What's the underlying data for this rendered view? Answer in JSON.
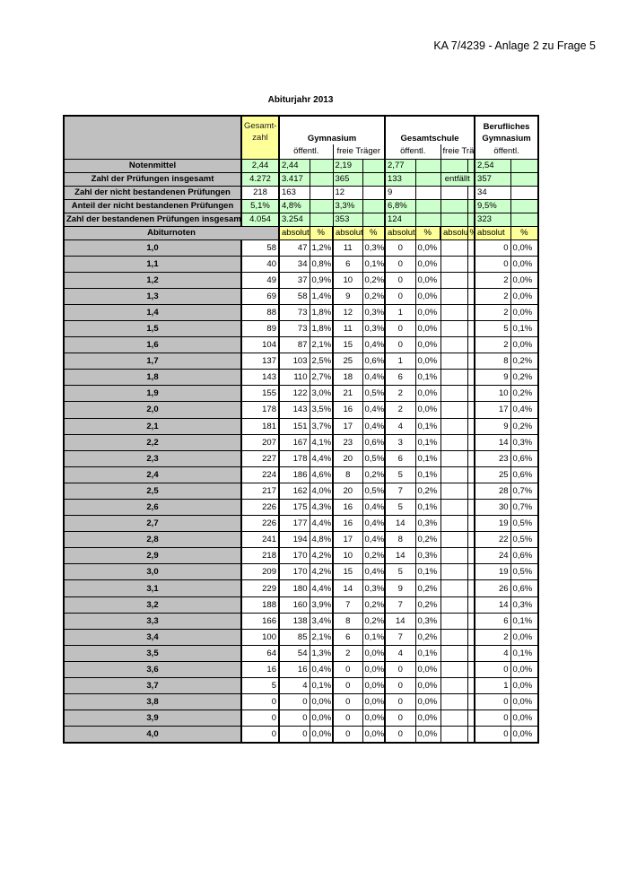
{
  "document_ref": "KA 7/4239 - Anlage 2 zu Frage 5",
  "title": "Abiturjahr 2013",
  "colors": {
    "label_gray": "#c0c0c0",
    "green": "#ccffcc",
    "yellow": "#ffff99"
  },
  "header": {
    "gesamtzahl": "Gesamt-zahl",
    "gymnasium": "Gymnasium",
    "gesamtschule": "Gesamtschule",
    "berufliches_gymnasium": "Berufliches Gymnasium",
    "oeffentl": "öffentl.",
    "freie_traeger": "freie Träger",
    "abiturnoten": "Abiturnoten",
    "absolut": "absolut",
    "percent": "%"
  },
  "summary_rows": [
    {
      "label": "Notenmittel",
      "gesamt": "2,44",
      "gym_oeff": "2,44",
      "gym_frei": "2,19",
      "gs_oeff": "2,77",
      "gs_frei": "",
      "bg_oeff": "2,54"
    },
    {
      "label": "Zahl der Prüfungen insgesamt",
      "gesamt": "4.272",
      "gym_oeff": "3.417",
      "gym_frei": "365",
      "gs_oeff": "133",
      "gs_frei": "entfällt",
      "bg_oeff": "357"
    },
    {
      "label": "Zahl der nicht bestandenen Prüfungen",
      "gesamt": "218",
      "gym_oeff": "163",
      "gym_frei": "12",
      "gs_oeff": "9",
      "gs_frei": "",
      "bg_oeff": "34"
    },
    {
      "label": "Anteil der nicht bestandenen Prüfungen",
      "gesamt": "5,1%",
      "gym_oeff": "4,8%",
      "gym_frei": "3,3%",
      "gs_oeff": "6,8%",
      "gs_frei": "",
      "bg_oeff": "9,5%"
    },
    {
      "label": "Zahl der bestandenen Prüfungen insgesamt",
      "gesamt": "4.054",
      "gym_oeff": "3.254",
      "gym_frei": "353",
      "gs_oeff": "124",
      "gs_frei": "",
      "bg_oeff": "323"
    }
  ],
  "grade_columns": [
    "note",
    "gesamt",
    "gym_oeff_abs",
    "gym_oeff_pct",
    "gym_frei_abs",
    "gym_frei_pct",
    "gs_oeff_abs",
    "gs_oeff_pct",
    "gs_frei_abs",
    "gs_frei_pct",
    "bg_oeff_abs",
    "bg_oeff_pct"
  ],
  "grade_rows": [
    [
      "1,0",
      "58",
      "47",
      "1,2%",
      "11",
      "0,3%",
      "0",
      "0,0%",
      "",
      "",
      "0",
      "0,0%"
    ],
    [
      "1,1",
      "40",
      "34",
      "0,8%",
      "6",
      "0,1%",
      "0",
      "0,0%",
      "",
      "",
      "0",
      "0,0%"
    ],
    [
      "1,2",
      "49",
      "37",
      "0,9%",
      "10",
      "0,2%",
      "0",
      "0,0%",
      "",
      "",
      "2",
      "0,0%"
    ],
    [
      "1,3",
      "69",
      "58",
      "1,4%",
      "9",
      "0,2%",
      "0",
      "0,0%",
      "",
      "",
      "2",
      "0,0%"
    ],
    [
      "1,4",
      "88",
      "73",
      "1,8%",
      "12",
      "0,3%",
      "1",
      "0,0%",
      "",
      "",
      "2",
      "0,0%"
    ],
    [
      "1,5",
      "89",
      "73",
      "1,8%",
      "11",
      "0,3%",
      "0",
      "0,0%",
      "",
      "",
      "5",
      "0,1%"
    ],
    [
      "1,6",
      "104",
      "87",
      "2,1%",
      "15",
      "0,4%",
      "0",
      "0,0%",
      "",
      "",
      "2",
      "0,0%"
    ],
    [
      "1,7",
      "137",
      "103",
      "2,5%",
      "25",
      "0,6%",
      "1",
      "0,0%",
      "",
      "",
      "8",
      "0,2%"
    ],
    [
      "1,8",
      "143",
      "110",
      "2,7%",
      "18",
      "0,4%",
      "6",
      "0,1%",
      "",
      "",
      "9",
      "0,2%"
    ],
    [
      "1,9",
      "155",
      "122",
      "3,0%",
      "21",
      "0,5%",
      "2",
      "0,0%",
      "",
      "",
      "10",
      "0,2%"
    ],
    [
      "2,0",
      "178",
      "143",
      "3,5%",
      "16",
      "0,4%",
      "2",
      "0,0%",
      "",
      "",
      "17",
      "0,4%"
    ],
    [
      "2,1",
      "181",
      "151",
      "3,7%",
      "17",
      "0,4%",
      "4",
      "0,1%",
      "",
      "",
      "9",
      "0,2%"
    ],
    [
      "2,2",
      "207",
      "167",
      "4,1%",
      "23",
      "0,6%",
      "3",
      "0,1%",
      "",
      "",
      "14",
      "0,3%"
    ],
    [
      "2,3",
      "227",
      "178",
      "4,4%",
      "20",
      "0,5%",
      "6",
      "0,1%",
      "",
      "",
      "23",
      "0,6%"
    ],
    [
      "2,4",
      "224",
      "186",
      "4,6%",
      "8",
      "0,2%",
      "5",
      "0,1%",
      "",
      "",
      "25",
      "0,6%"
    ],
    [
      "2,5",
      "217",
      "162",
      "4,0%",
      "20",
      "0,5%",
      "7",
      "0,2%",
      "",
      "",
      "28",
      "0,7%"
    ],
    [
      "2,6",
      "226",
      "175",
      "4,3%",
      "16",
      "0,4%",
      "5",
      "0,1%",
      "",
      "",
      "30",
      "0,7%"
    ],
    [
      "2,7",
      "226",
      "177",
      "4,4%",
      "16",
      "0,4%",
      "14",
      "0,3%",
      "",
      "",
      "19",
      "0,5%"
    ],
    [
      "2,8",
      "241",
      "194",
      "4,8%",
      "17",
      "0,4%",
      "8",
      "0,2%",
      "",
      "",
      "22",
      "0,5%"
    ],
    [
      "2,9",
      "218",
      "170",
      "4,2%",
      "10",
      "0,2%",
      "14",
      "0,3%",
      "",
      "",
      "24",
      "0,6%"
    ],
    [
      "3,0",
      "209",
      "170",
      "4,2%",
      "15",
      "0,4%",
      "5",
      "0,1%",
      "",
      "",
      "19",
      "0,5%"
    ],
    [
      "3,1",
      "229",
      "180",
      "4,4%",
      "14",
      "0,3%",
      "9",
      "0,2%",
      "",
      "",
      "26",
      "0,6%"
    ],
    [
      "3,2",
      "188",
      "160",
      "3,9%",
      "7",
      "0,2%",
      "7",
      "0,2%",
      "",
      "",
      "14",
      "0,3%"
    ],
    [
      "3,3",
      "166",
      "138",
      "3,4%",
      "8",
      "0,2%",
      "14",
      "0,3%",
      "",
      "",
      "6",
      "0,1%"
    ],
    [
      "3,4",
      "100",
      "85",
      "2,1%",
      "6",
      "0,1%",
      "7",
      "0,2%",
      "",
      "",
      "2",
      "0,0%"
    ],
    [
      "3,5",
      "64",
      "54",
      "1,3%",
      "2",
      "0,0%",
      "4",
      "0,1%",
      "",
      "",
      "4",
      "0,1%"
    ],
    [
      "3,6",
      "16",
      "16",
      "0,4%",
      "0",
      "0,0%",
      "0",
      "0,0%",
      "",
      "",
      "0",
      "0,0%"
    ],
    [
      "3,7",
      "5",
      "4",
      "0,1%",
      "0",
      "0,0%",
      "0",
      "0,0%",
      "",
      "",
      "1",
      "0,0%"
    ],
    [
      "3,8",
      "0",
      "0",
      "0,0%",
      "0",
      "0,0%",
      "0",
      "0,0%",
      "",
      "",
      "0",
      "0,0%"
    ],
    [
      "3,9",
      "0",
      "0",
      "0,0%",
      "0",
      "0,0%",
      "0",
      "0,0%",
      "",
      "",
      "0",
      "0,0%"
    ],
    [
      "4,0",
      "0",
      "0",
      "0,0%",
      "0",
      "0,0%",
      "0",
      "0,0%",
      "",
      "",
      "0",
      "0,0%"
    ]
  ]
}
